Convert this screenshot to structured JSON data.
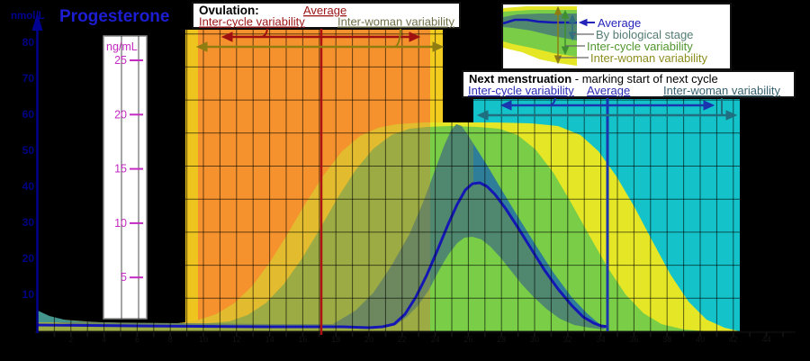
{
  "title": "Progesterone",
  "y_axis": {
    "unit_left": "nmol/L",
    "ticks_left": [
      80,
      70,
      60,
      50,
      40,
      30,
      20,
      10
    ],
    "unit_inner": "ng/mL",
    "ticks_inner": [
      25,
      20,
      15,
      10,
      5
    ]
  },
  "x_axis": {
    "tick_labels": [
      2,
      4,
      6,
      8,
      10,
      12,
      14,
      16,
      18,
      20,
      22,
      24,
      26,
      28,
      30,
      32,
      34,
      36,
      38,
      40,
      42,
      44
    ]
  },
  "boxes": {
    "ovulation": {
      "heading": "Ovulation:",
      "average": "Average",
      "inter_cycle": "Inter-cycle variability",
      "inter_woman": "Inter-woman variability"
    },
    "next_menstruation": {
      "heading": "Next menstruation",
      "subtitle": " - marking start of next cycle",
      "inter_cycle": "Inter-cycle variability",
      "average": "Average",
      "inter_woman": "Inter-woman variability"
    }
  },
  "legend": {
    "average": "Average",
    "by_stage": "By biological stage",
    "inter_cycle": "Inter-cycle variability",
    "inter_woman": "Inter-woman variability"
  },
  "colors": {
    "background": "#000000",
    "ovulation_orange": "#f5922d",
    "ovulation_edge_yellow": "#eec41f",
    "next_menstruation_teal": "#14c3ca",
    "inter_woman_band_yellow": "#e4e626",
    "inter_cycle_band_green": "#79cd47",
    "by_stage_band_dark": "#4f886e",
    "by_stage_over_teal_steel": "#2f7e99",
    "average_line_blue": "#1517b5",
    "ovulation_average_red": "#ad1212",
    "next_menstruation_average_blue": "#1a35ad",
    "axis_navy": "#000091",
    "ng_ml_pink": "#c32bc3"
  },
  "chart_data": {
    "type": "area",
    "title": "Progesterone",
    "y_axis_left": {
      "label": "nmol/L",
      "ticks": [
        10,
        20,
        30,
        40,
        50,
        60,
        70,
        80
      ],
      "range": [
        0,
        84
      ]
    },
    "y_axis_inner": {
      "label": "ng/mL",
      "ticks": [
        5,
        10,
        15,
        20,
        25
      ]
    },
    "x_axis": {
      "tick_labels_visible_but_illegible": true,
      "approx_span_days": [
        0,
        45
      ]
    },
    "grid": "on",
    "series": [
      {
        "name": "Average",
        "type": "line",
        "points_day_vs_nmol_per_L": [
          [
            0,
            1.5
          ],
          [
            5,
            1.3
          ],
          [
            10,
            1.3
          ],
          [
            15,
            1.2
          ],
          [
            20,
            1.2
          ],
          [
            21.5,
            2
          ],
          [
            22.3,
            5
          ],
          [
            23.5,
            16
          ],
          [
            24.5,
            24
          ],
          [
            25.5,
            33
          ],
          [
            26.5,
            41
          ],
          [
            27.5,
            39
          ],
          [
            28.5,
            32
          ],
          [
            29.5,
            25
          ],
          [
            30.5,
            17
          ],
          [
            31.5,
            11
          ],
          [
            32.5,
            5
          ],
          [
            33.5,
            2.4
          ],
          [
            34.5,
            1.3
          ]
        ]
      },
      {
        "name": "By biological stage",
        "type": "band",
        "peak_day": 26.5,
        "peak_range_nmol_per_L": [
          26,
          57.5
        ]
      },
      {
        "name": "Inter-cycle variability",
        "type": "band",
        "peak_day": 26.5,
        "peak_range_nmol_per_L": [
          1,
          57
        ]
      },
      {
        "name": "Inter-woman variability",
        "type": "band",
        "peak_day": 26.5,
        "peak_range_nmol_per_L": [
          0.5,
          58
        ]
      }
    ],
    "events": {
      "ovulation": {
        "average_day": 17.1,
        "inter_cycle_day_range": [
          11.2,
          23.0
        ],
        "inter_woman_day_range": [
          9.7,
          24.6
        ]
      },
      "next_menstruation": {
        "average_day": 34.4,
        "inter_cycle_day_range": [
          28.0,
          40.8
        ],
        "inter_woman_day_range": [
          26.6,
          42.1
        ]
      }
    },
    "legend_position": "top-right"
  }
}
